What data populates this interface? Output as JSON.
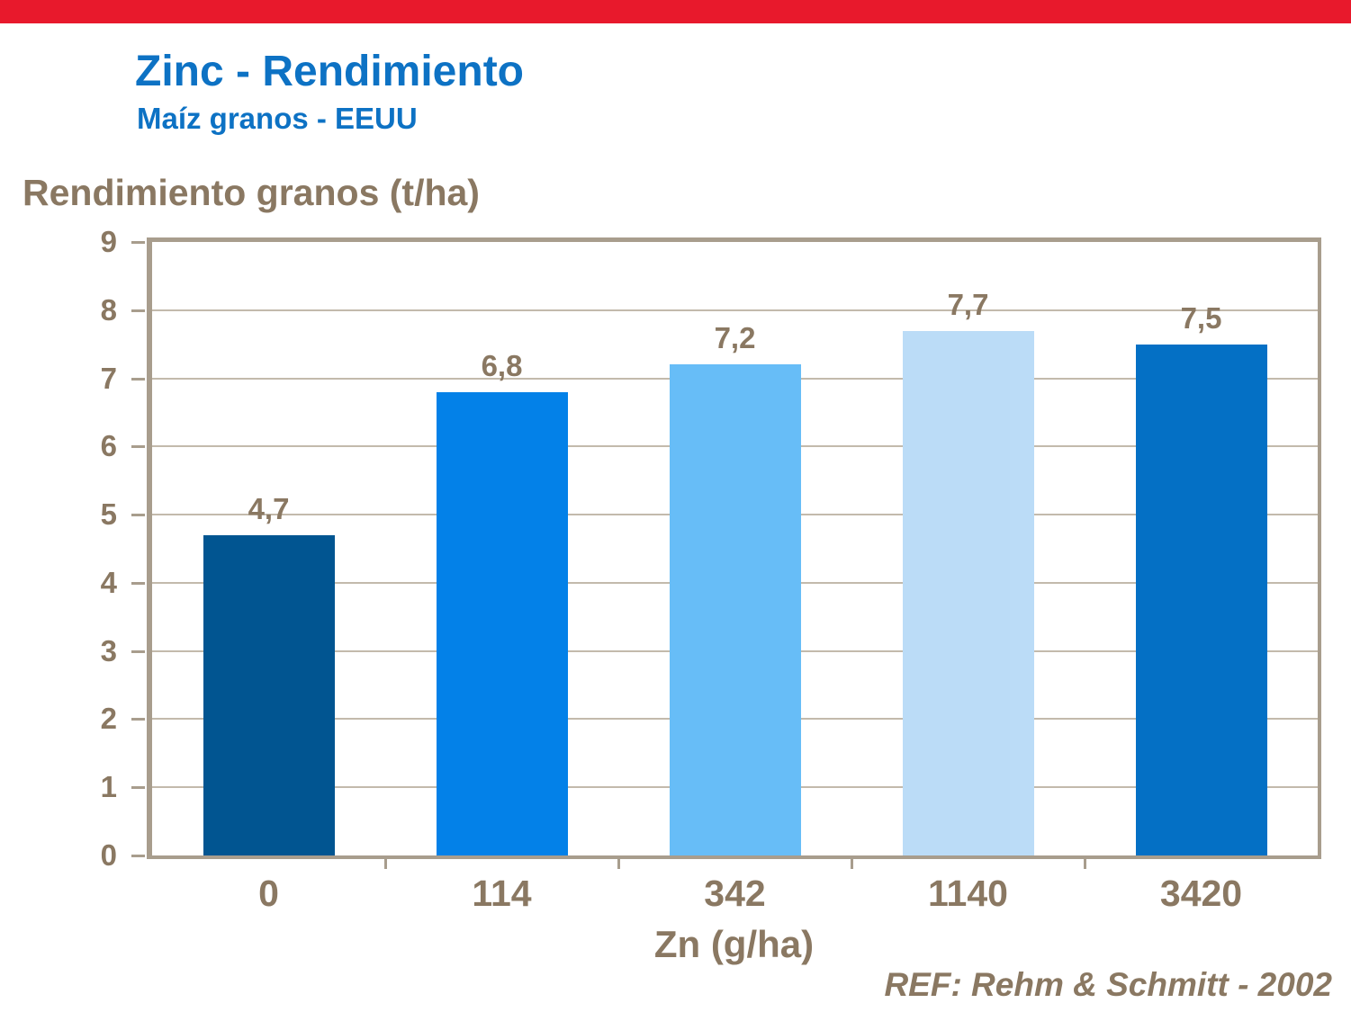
{
  "page": {
    "background_color": "#FFFFFF",
    "top_strip_color": "#E8192C",
    "accent_blue": "#0D72C4",
    "text_brown": "#8A7862",
    "axis_color": "#A89D8D",
    "grid_color": "#C3BAAC"
  },
  "header": {
    "title": "Zinc - Rendimiento",
    "subtitle": "Maíz granos - EEUU"
  },
  "chart_data": {
    "type": "bar",
    "title": "Zinc - Rendimiento",
    "subtitle": "Maíz granos - EEUU",
    "categories": [
      "0",
      "114",
      "342",
      "1140",
      "3420"
    ],
    "values": [
      4.7,
      6.8,
      7.2,
      7.7,
      7.5
    ],
    "value_labels": [
      "4,7",
      "6,8",
      "7,2",
      "7,7",
      "7,5"
    ],
    "bar_colors": [
      "#015591",
      "#0381E8",
      "#67BDF7",
      "#BBDCF7",
      "#0470C5"
    ],
    "xlabel": "Zn (g/ha)",
    "ylabel": "Rendimiento granos (t/ha)",
    "ylim": [
      0,
      9
    ],
    "yticks": [
      0,
      1,
      2,
      3,
      4,
      5,
      6,
      7,
      8,
      9
    ],
    "grid": "horizontal-integer-lines",
    "legend": "none",
    "bar_label_position": "above"
  },
  "footer": {
    "reference": "REF: Rehm & Schmitt - 2002"
  }
}
